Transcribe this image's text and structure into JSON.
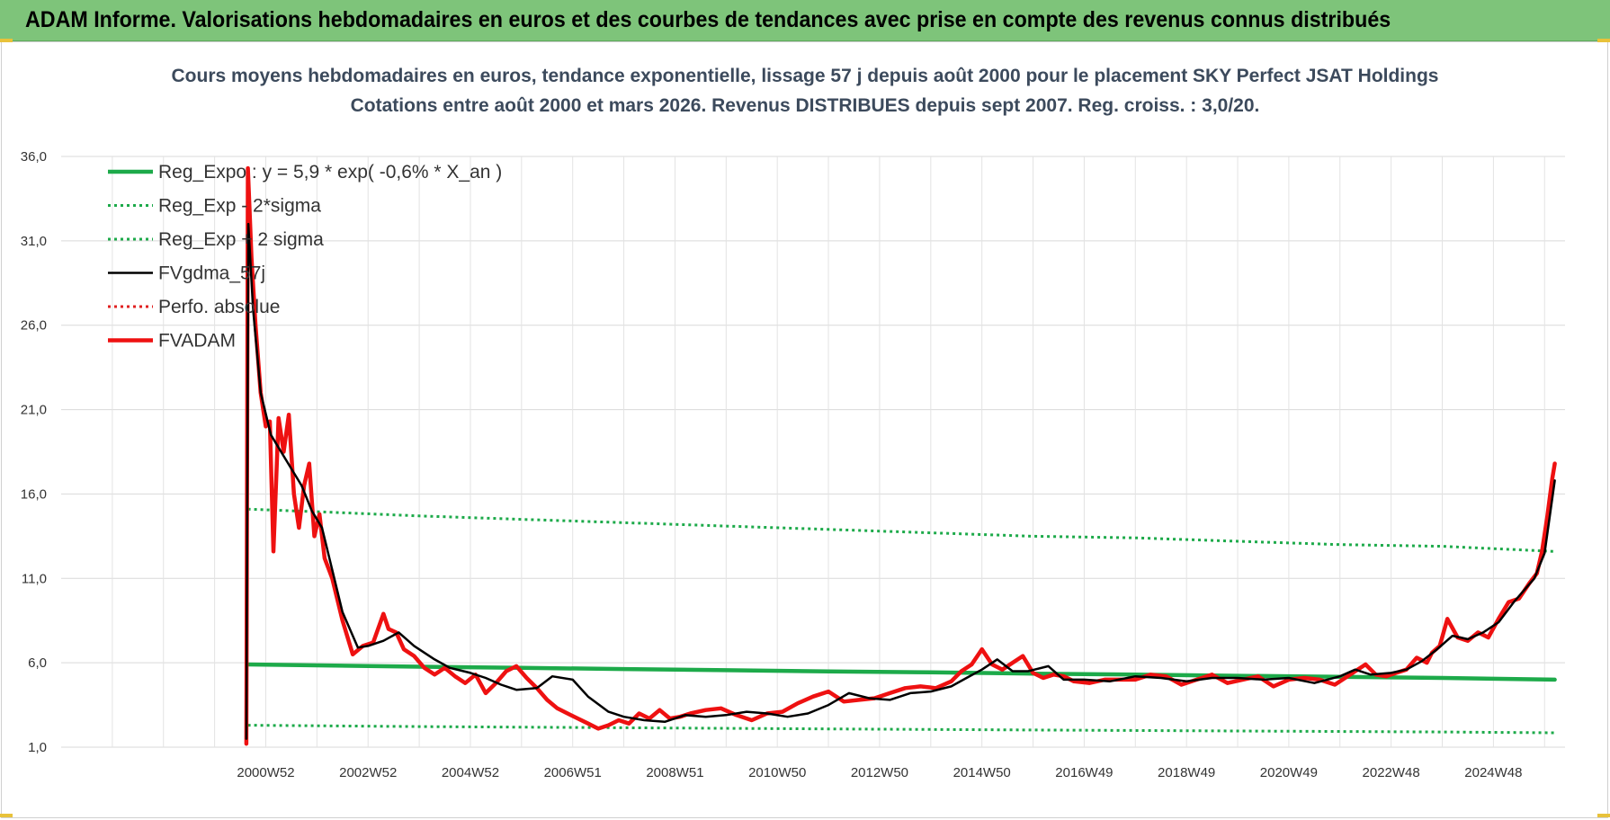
{
  "banner": {
    "title": "ADAM Informe. Valorisations hebdomadaires en euros et des courbes de tendances avec prise en compte des revenus connus distribués"
  },
  "chart_data": {
    "type": "line",
    "title": "Cours moyens hebdomadaires en euros, tendance exponentielle, lissage 57 j depuis août 2000 pour le placement SKY Perfect JSAT Holdings",
    "subtitle": "Cotations entre août 2000 et mars 2026. Revenus DISTRIBUES depuis sept 2007. Reg. croiss. : 3,0/20.",
    "xlabel": "",
    "ylabel": "",
    "ylim": [
      1.0,
      36.0
    ],
    "xlim": [
      1997.0,
      2026.4
    ],
    "y_ticks": [
      "36,0",
      "31,0",
      "26,0",
      "21,0",
      "16,0",
      "11,0",
      "6,0",
      "1,0"
    ],
    "y_tick_values": [
      36,
      31,
      26,
      21,
      16,
      11,
      6,
      1
    ],
    "x_tick_labels": [
      "2000W52",
      "2002W52",
      "2004W52",
      "2006W51",
      "2008W51",
      "2010W50",
      "2012W50",
      "2014W50",
      "2016W49",
      "2018W49",
      "2020W49",
      "2022W48",
      "2024W48"
    ],
    "x_tick_values": [
      2001.0,
      2003.0,
      2005.0,
      2007.0,
      2009.0,
      2011.0,
      2013.0,
      2015.0,
      2017.0,
      2019.0,
      2021.0,
      2023.0,
      2025.0
    ],
    "grid": true,
    "legend_position": "top-left",
    "series": [
      {
        "name": "Reg_Expo : y = 5,9 * exp( -0,6% *  X_an )",
        "color": "#1daa4a",
        "style": "solid-thick",
        "x": [
          2000.65,
          2002.0,
          2004.0,
          2006.0,
          2008.0,
          2010.0,
          2012.0,
          2014.0,
          2016.0,
          2018.0,
          2020.0,
          2022.0,
          2024.0,
          2026.2
        ],
        "y": [
          5.9,
          5.85,
          5.77,
          5.7,
          5.63,
          5.56,
          5.49,
          5.43,
          5.36,
          5.3,
          5.23,
          5.17,
          5.1,
          5.0
        ]
      },
      {
        "name": "Reg_Exp - 2*sigma",
        "color": "#1daa4a",
        "style": "dotted",
        "x": [
          2000.65,
          2004.0,
          2008.0,
          2012.0,
          2016.0,
          2020.0,
          2024.0,
          2026.2
        ],
        "y": [
          2.3,
          2.22,
          2.15,
          2.08,
          2.02,
          1.96,
          1.9,
          1.85
        ]
      },
      {
        "name": "Reg_Exp + 2 sigma",
        "color": "#1daa4a",
        "style": "dotted",
        "x": [
          2000.65,
          2002.0,
          2004.0,
          2006.0,
          2008.0,
          2010.0,
          2012.0,
          2014.0,
          2016.0,
          2018.0,
          2020.0,
          2022.0,
          2024.0,
          2026.2
        ],
        "y": [
          15.1,
          14.95,
          14.7,
          14.5,
          14.3,
          14.1,
          13.9,
          13.7,
          13.5,
          13.4,
          13.2,
          13.0,
          12.9,
          12.6
        ]
      },
      {
        "name": "FVgdma_57j",
        "color": "#000000",
        "style": "solid",
        "x": [
          2000.62,
          2000.66,
          2000.75,
          2000.9,
          2001.1,
          2001.4,
          2001.7,
          2001.9,
          2002.1,
          2002.3,
          2002.5,
          2002.8,
          2003.0,
          2003.3,
          2003.6,
          2003.9,
          2004.3,
          2004.6,
          2005.0,
          2005.3,
          2005.6,
          2005.9,
          2006.3,
          2006.6,
          2007.0,
          2007.3,
          2007.7,
          2008.0,
          2008.4,
          2008.8,
          2009.2,
          2009.6,
          2010.0,
          2010.4,
          2010.8,
          2011.2,
          2011.6,
          2012.0,
          2012.4,
          2012.8,
          2013.2,
          2013.6,
          2014.0,
          2014.4,
          2014.7,
          2015.0,
          2015.3,
          2015.6,
          2015.9,
          2016.3,
          2016.6,
          2017.0,
          2017.5,
          2018.0,
          2018.5,
          2019.0,
          2019.5,
          2020.0,
          2020.5,
          2021.0,
          2021.5,
          2022.0,
          2022.3,
          2022.6,
          2023.0,
          2023.3,
          2023.6,
          2023.9,
          2024.2,
          2024.5,
          2024.8,
          2025.1,
          2025.4,
          2025.6,
          2025.8,
          2026.0,
          2026.2
        ],
        "y": [
          1.5,
          32.0,
          27.0,
          22.0,
          19.5,
          18.0,
          16.5,
          15.0,
          14.0,
          11.5,
          9.0,
          6.9,
          7.0,
          7.3,
          7.8,
          7.0,
          6.2,
          5.7,
          5.4,
          5.1,
          4.7,
          4.4,
          4.5,
          5.2,
          5.0,
          4.0,
          3.1,
          2.8,
          2.6,
          2.5,
          2.9,
          2.8,
          2.9,
          3.1,
          3.0,
          2.8,
          3.0,
          3.5,
          4.2,
          3.9,
          3.8,
          4.2,
          4.3,
          4.6,
          5.1,
          5.6,
          6.2,
          5.5,
          5.5,
          5.8,
          5.0,
          5.0,
          4.9,
          5.2,
          5.1,
          4.9,
          5.1,
          5.1,
          5.0,
          5.1,
          4.8,
          5.2,
          5.6,
          5.3,
          5.4,
          5.6,
          6.1,
          6.8,
          7.6,
          7.4,
          7.8,
          8.4,
          9.6,
          10.3,
          11.0,
          12.5,
          16.8
        ]
      },
      {
        "name": "Perfo. absolue",
        "color": "#e02020",
        "style": "dotted",
        "x": [],
        "y": []
      },
      {
        "name": "FVADAM",
        "color": "#ee1111",
        "style": "solid-thick",
        "x": [
          2000.62,
          2000.65,
          2000.72,
          2000.8,
          2000.9,
          2001.0,
          2001.08,
          2001.15,
          2001.25,
          2001.35,
          2001.45,
          2001.55,
          2001.65,
          2001.75,
          2001.85,
          2001.95,
          2002.05,
          2002.15,
          2002.3,
          2002.5,
          2002.7,
          2002.9,
          2003.1,
          2003.3,
          2003.4,
          2003.55,
          2003.7,
          2003.9,
          2004.1,
          2004.3,
          2004.5,
          2004.7,
          2004.9,
          2005.1,
          2005.3,
          2005.5,
          2005.7,
          2005.9,
          2006.1,
          2006.3,
          2006.5,
          2006.7,
          2006.9,
          2007.1,
          2007.3,
          2007.5,
          2007.7,
          2007.9,
          2008.1,
          2008.3,
          2008.5,
          2008.7,
          2008.9,
          2009.1,
          2009.3,
          2009.6,
          2009.9,
          2010.2,
          2010.5,
          2010.8,
          2011.1,
          2011.4,
          2011.7,
          2012.0,
          2012.3,
          2012.6,
          2012.9,
          2013.2,
          2013.5,
          2013.8,
          2014.1,
          2014.4,
          2014.6,
          2014.8,
          2015.0,
          2015.2,
          2015.4,
          2015.6,
          2015.8,
          2016.0,
          2016.2,
          2016.4,
          2016.6,
          2016.8,
          2017.1,
          2017.4,
          2017.7,
          2018.0,
          2018.3,
          2018.6,
          2018.9,
          2019.2,
          2019.5,
          2019.8,
          2020.1,
          2020.4,
          2020.7,
          2021.0,
          2021.3,
          2021.6,
          2021.9,
          2022.1,
          2022.3,
          2022.5,
          2022.7,
          2022.9,
          2023.1,
          2023.3,
          2023.5,
          2023.7,
          2023.8,
          2023.95,
          2024.1,
          2024.3,
          2024.5,
          2024.7,
          2024.9,
          2025.1,
          2025.3,
          2025.5,
          2025.7,
          2025.85,
          2025.95,
          2026.05,
          2026.15,
          2026.2
        ],
        "y": [
          1.2,
          35.3,
          30.0,
          26.0,
          22.0,
          20.0,
          20.3,
          12.6,
          20.5,
          18.5,
          20.7,
          16.0,
          14.0,
          16.5,
          17.8,
          13.5,
          14.8,
          12.2,
          11.0,
          8.5,
          6.5,
          7.0,
          7.2,
          8.9,
          8.0,
          7.8,
          6.8,
          6.4,
          5.7,
          5.3,
          5.7,
          5.2,
          4.8,
          5.3,
          4.2,
          4.8,
          5.5,
          5.8,
          5.1,
          4.5,
          3.8,
          3.3,
          3.0,
          2.7,
          2.4,
          2.1,
          2.3,
          2.6,
          2.4,
          3.0,
          2.7,
          3.2,
          2.7,
          2.8,
          3.0,
          3.2,
          3.3,
          2.9,
          2.6,
          3.0,
          3.1,
          3.6,
          4.0,
          4.3,
          3.7,
          3.8,
          3.9,
          4.2,
          4.5,
          4.6,
          4.5,
          4.9,
          5.5,
          5.9,
          6.8,
          5.9,
          5.6,
          6.0,
          6.4,
          5.4,
          5.1,
          5.3,
          5.2,
          4.9,
          4.8,
          5.0,
          5.0,
          5.0,
          5.3,
          5.2,
          4.7,
          5.0,
          5.3,
          4.8,
          5.0,
          5.2,
          4.6,
          5.0,
          5.1,
          5.0,
          4.7,
          5.1,
          5.5,
          5.9,
          5.3,
          5.2,
          5.4,
          5.6,
          6.3,
          6.0,
          6.6,
          7.0,
          8.6,
          7.5,
          7.3,
          7.8,
          7.5,
          8.6,
          9.6,
          9.8,
          10.7,
          11.3,
          12.6,
          14.6,
          16.9,
          17.8
        ]
      }
    ]
  }
}
